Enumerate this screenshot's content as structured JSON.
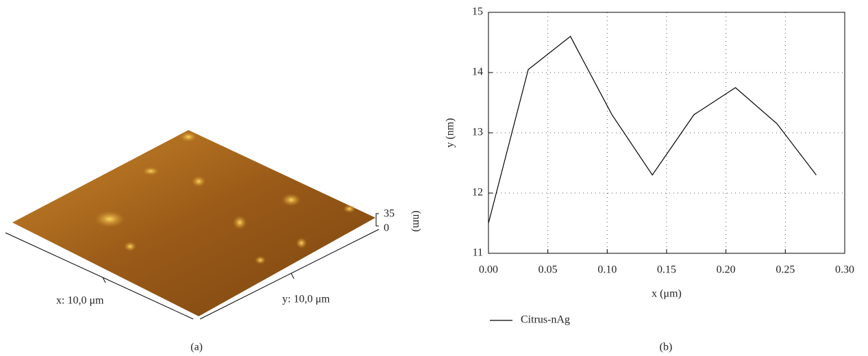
{
  "figure": {
    "panel_a": {
      "x_label": "x: 10,0 μm",
      "y_label": "y: 10,0 μm",
      "scale_max": 35,
      "scale_min": 0,
      "scale_unit": "(nm)",
      "label": "(a)"
    },
    "panel_b_label": "(b)"
  },
  "chart_data": {
    "type": "line",
    "x_label": "x (μm)",
    "y_label": "y (nm)",
    "x": [
      0,
      0.0335,
      0.069,
      0.104,
      0.138,
      0.173,
      0.208,
      0.243,
      0.276
    ],
    "series": [
      {
        "name": "Citrus-nAg",
        "color": "#000000",
        "values": [
          11.5,
          14.05,
          14.6,
          13.3,
          12.3,
          13.3,
          13.75,
          13.15,
          12.3
        ]
      }
    ],
    "xlim": [
      0,
      0.3
    ],
    "ylim": [
      11,
      15
    ],
    "xticks": [
      {
        "value": 0,
        "label": "0.00"
      },
      {
        "value": 0.05,
        "label": "0.05"
      },
      {
        "value": 0.1,
        "label": "0.10"
      },
      {
        "value": 0.15,
        "label": "0.15"
      },
      {
        "value": 0.2,
        "label": "0.20"
      },
      {
        "value": 0.25,
        "label": "0.25"
      },
      {
        "value": 0.3,
        "label": "0.30"
      }
    ],
    "yticks": [
      11,
      12,
      13,
      14,
      15
    ],
    "grid": true,
    "legend": "bottom-left"
  }
}
